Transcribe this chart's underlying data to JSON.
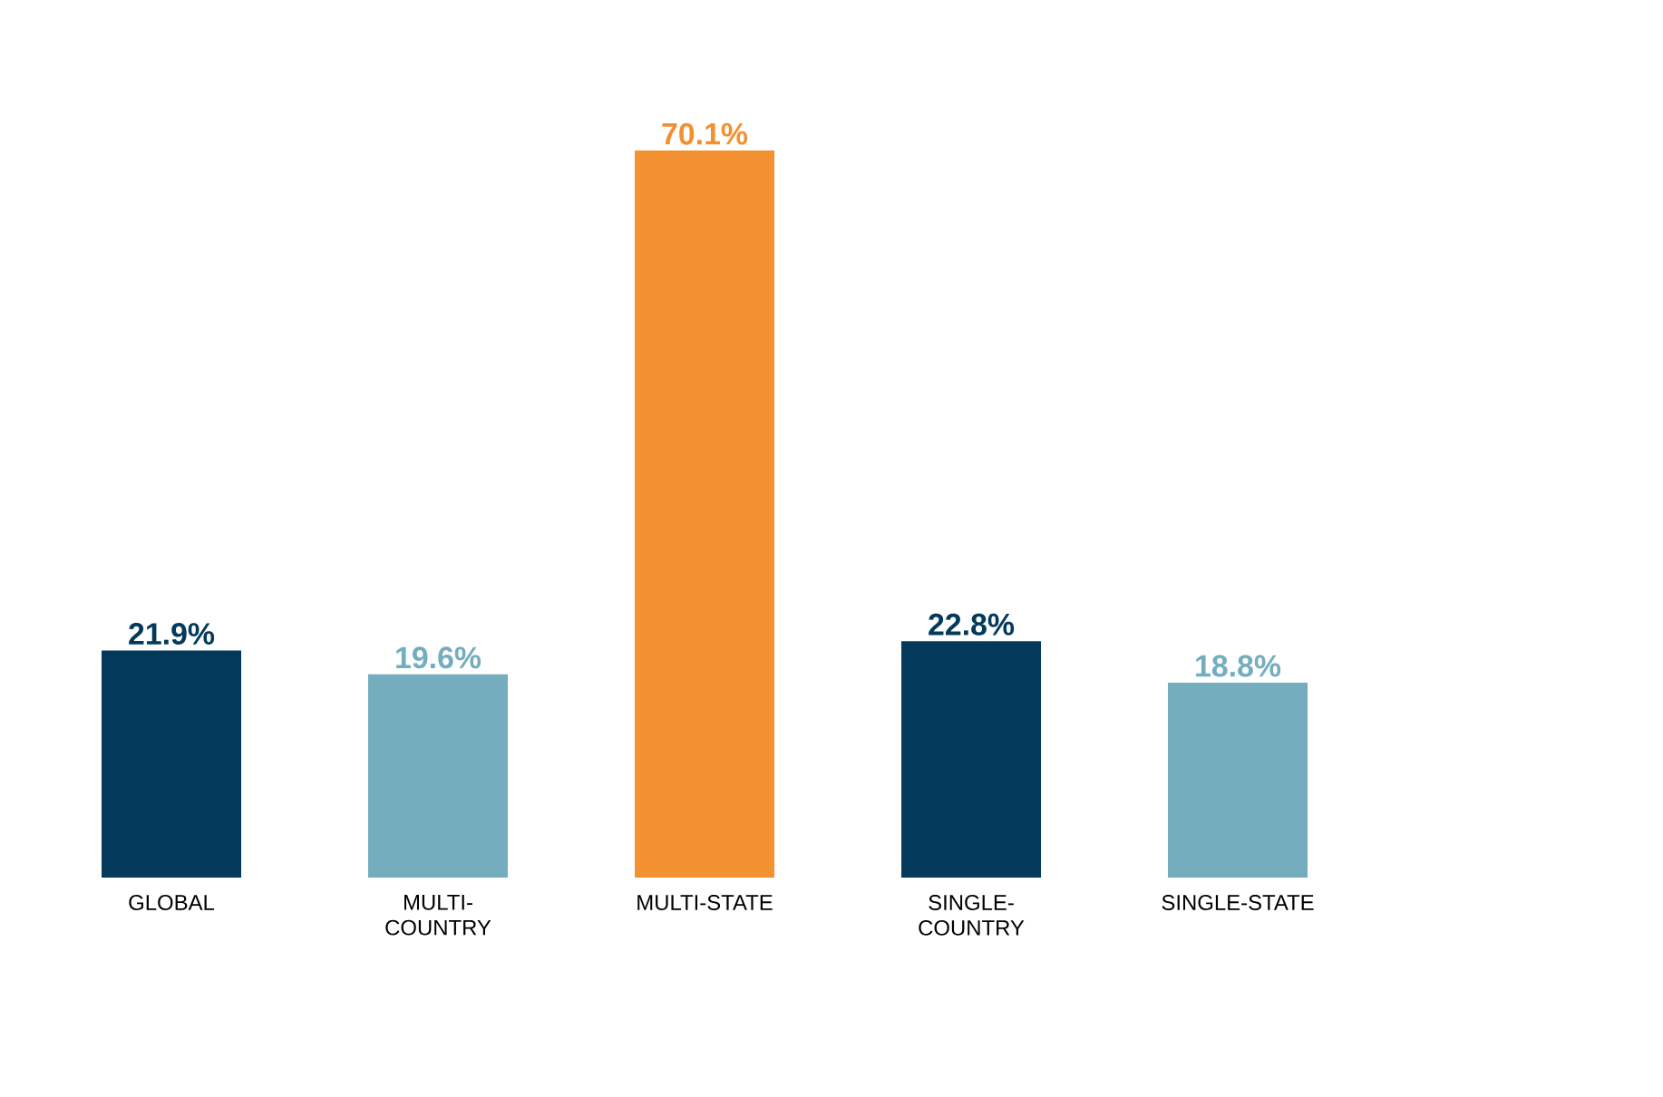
{
  "chart_data": {
    "type": "bar",
    "categories": [
      "GLOBAL",
      "MULTI-COUNTRY",
      "MULTI-STATE",
      "SINGLE-COUNTRY",
      "SINGLE-STATE"
    ],
    "values": [
      21.9,
      19.6,
      70.1,
      22.8,
      18.8
    ],
    "colors": [
      "#033a5c",
      "#74adbd",
      "#f39130",
      "#033a5c",
      "#74adbd"
    ],
    "value_labels": [
      "21.9%",
      "19.6%",
      "70.1%",
      "22.8%",
      "18.8%"
    ]
  }
}
